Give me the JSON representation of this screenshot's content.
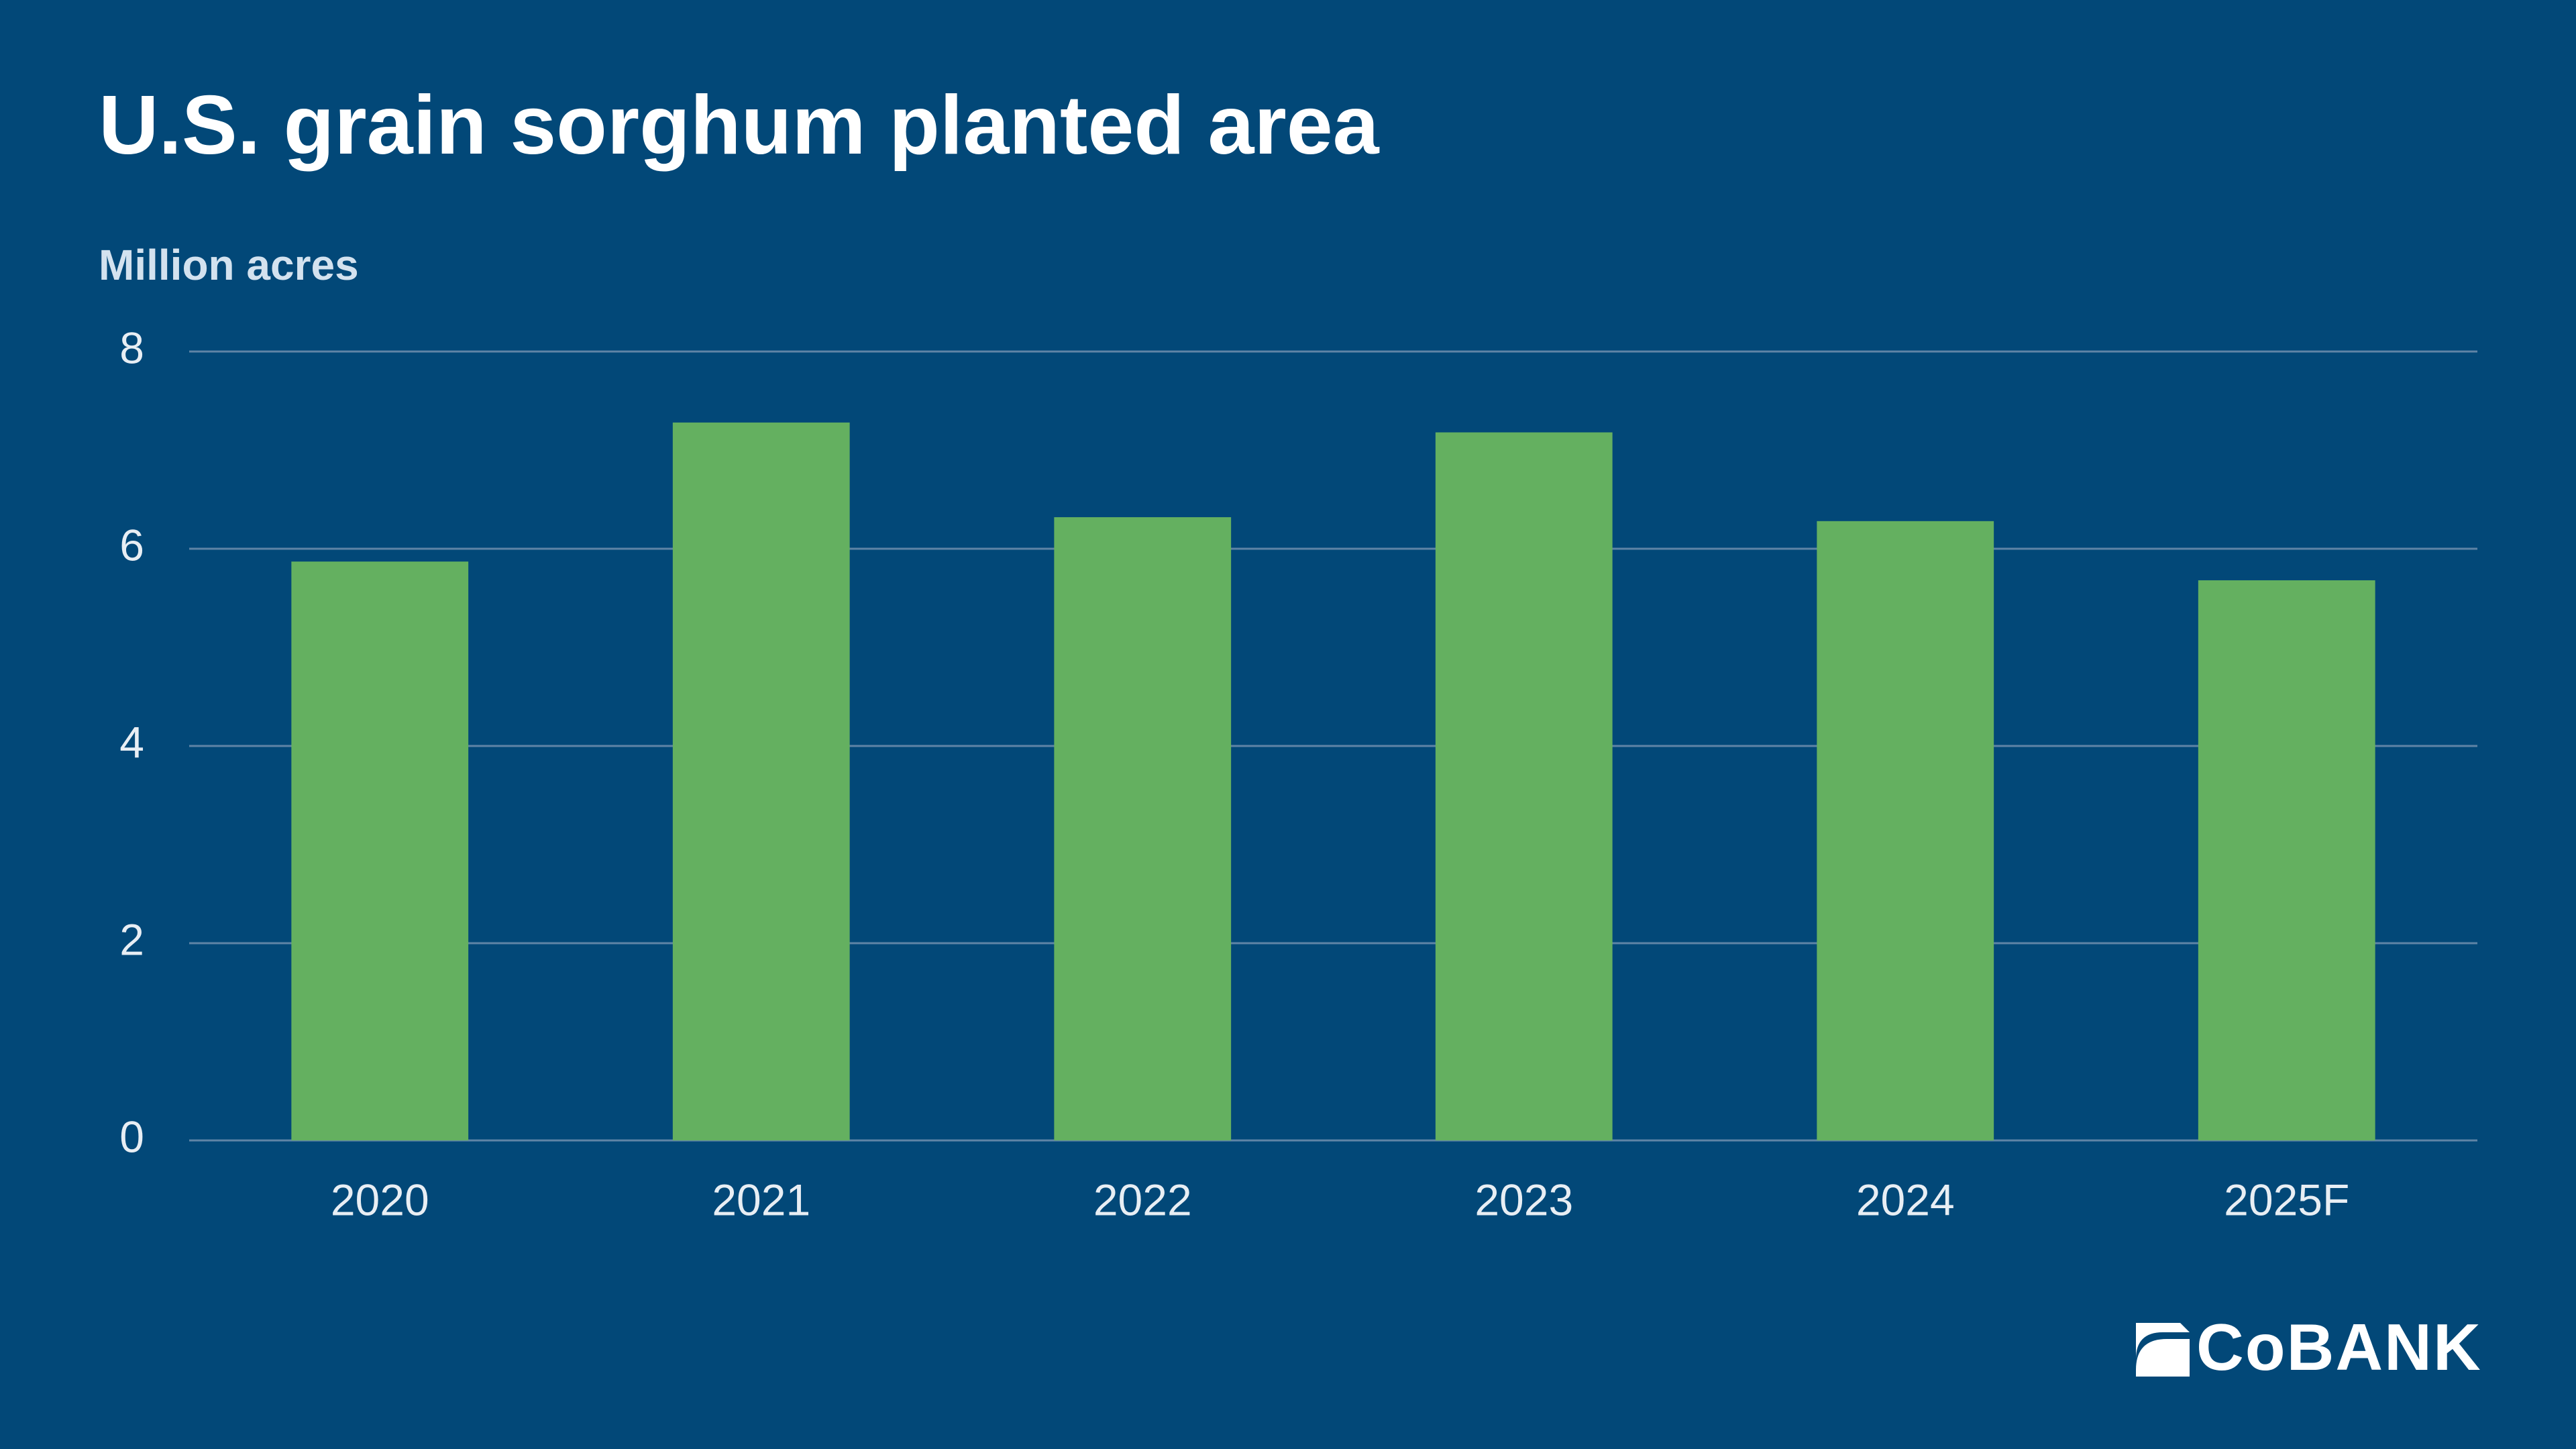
{
  "chart_data": {
    "type": "bar",
    "title": "U.S. grain sorghum planted area",
    "subtitle": "Million acres",
    "categories": [
      "2020",
      "2021",
      "2022",
      "2023",
      "2024",
      "2025F"
    ],
    "values": [
      5.87,
      7.28,
      6.32,
      7.18,
      6.28,
      5.68
    ],
    "color": "#64b060",
    "ylim": [
      0,
      8
    ],
    "yticks": [
      0,
      2,
      4,
      6,
      8
    ],
    "grid": true,
    "brand": "CoBANK"
  }
}
